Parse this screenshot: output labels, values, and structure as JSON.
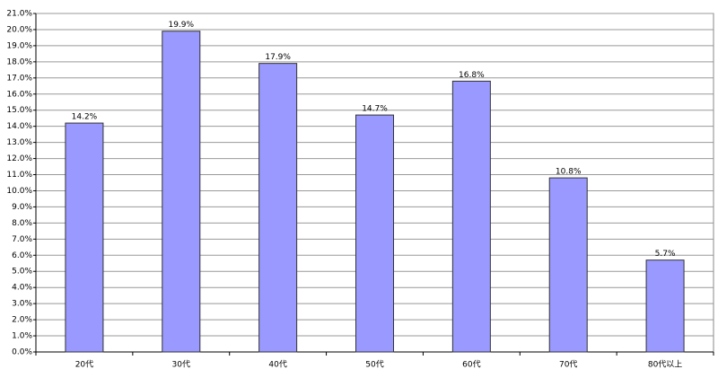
{
  "chart_data": {
    "type": "bar",
    "categories": [
      "20代",
      "30代",
      "40代",
      "50代",
      "60代",
      "70代",
      "80代以上"
    ],
    "values": [
      14.2,
      19.9,
      17.9,
      14.7,
      16.8,
      10.8,
      5.7
    ],
    "value_labels": [
      "14.2%",
      "19.9%",
      "17.9%",
      "14.7%",
      "16.8%",
      "10.8%",
      "5.7%"
    ],
    "color": "#9999ff",
    "ylim": [
      0,
      21
    ],
    "yticks": [
      {
        "value": 0,
        "label": "0.0%"
      },
      {
        "value": 1,
        "label": "1.0%"
      },
      {
        "value": 2,
        "label": "2.0%"
      },
      {
        "value": 3,
        "label": "3.0%"
      },
      {
        "value": 4,
        "label": "4.0%"
      },
      {
        "value": 5,
        "label": "5.0%"
      },
      {
        "value": 6,
        "label": "6.0%"
      },
      {
        "value": 7,
        "label": "7.0%"
      },
      {
        "value": 8,
        "label": "8.0%"
      },
      {
        "value": 9,
        "label": "9.0%"
      },
      {
        "value": 10,
        "label": "10.0%"
      },
      {
        "value": 11,
        "label": "11.0%"
      },
      {
        "value": 12,
        "label": "12.0%"
      },
      {
        "value": 13,
        "label": "13.0%"
      },
      {
        "value": 14,
        "label": "14.0%"
      },
      {
        "value": 15,
        "label": "15.0%"
      },
      {
        "value": 16,
        "label": "16.0%"
      },
      {
        "value": 17,
        "label": "17.0%"
      },
      {
        "value": 18,
        "label": "18.0%"
      },
      {
        "value": 19,
        "label": "19.0%"
      },
      {
        "value": 20,
        "label": "20.0%"
      },
      {
        "value": 21,
        "label": "21.0%"
      }
    ],
    "grid": true
  }
}
